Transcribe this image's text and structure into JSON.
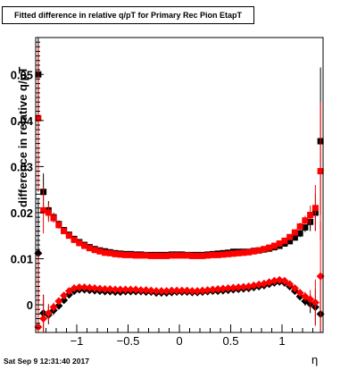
{
  "chart_data": {
    "type": "scatter",
    "title": "Fitted difference in relative q/pT for Primary Rec Pion EtapT",
    "xlabel": "η",
    "ylabel": "difference in relative q/pT",
    "xlim": [
      -1.4,
      1.4
    ],
    "ylim": [
      -0.006,
      0.058
    ],
    "x_ticks": [
      -1,
      -0.5,
      0,
      0.5,
      1
    ],
    "x_tick_labels": [
      "−1",
      "−0.5",
      "0",
      "0.5",
      "1"
    ],
    "y_ticks": [
      0,
      0.01,
      0.02,
      0.03,
      0.04,
      0.05
    ],
    "y_tick_labels": [
      "0",
      "0.01",
      "0.02",
      "0.03",
      "0.04",
      "0.05"
    ],
    "x": [
      -1.375,
      -1.325,
      -1.275,
      -1.225,
      -1.175,
      -1.125,
      -1.075,
      -1.025,
      -0.975,
      -0.925,
      -0.875,
      -0.825,
      -0.775,
      -0.725,
      -0.675,
      -0.625,
      -0.575,
      -0.525,
      -0.475,
      -0.425,
      -0.375,
      -0.325,
      -0.275,
      -0.225,
      -0.175,
      -0.125,
      -0.075,
      -0.025,
      0.025,
      0.075,
      0.125,
      0.175,
      0.225,
      0.275,
      0.325,
      0.375,
      0.425,
      0.475,
      0.525,
      0.575,
      0.625,
      0.675,
      0.725,
      0.775,
      0.825,
      0.875,
      0.925,
      0.975,
      1.025,
      1.075,
      1.125,
      1.175,
      1.225,
      1.275,
      1.325,
      1.375
    ],
    "series": [
      {
        "marker": "square",
        "color": "#000000",
        "values": [
          0.05,
          0.0245,
          0.0205,
          0.019,
          0.0175,
          0.0162,
          0.0152,
          0.0143,
          0.0136,
          0.013,
          0.0125,
          0.0121,
          0.0118,
          0.0116,
          0.0114,
          0.0112,
          0.0111,
          0.011,
          0.011,
          0.0109,
          0.0109,
          0.0108,
          0.0108,
          0.0108,
          0.0108,
          0.0108,
          0.0109,
          0.0109,
          0.0109,
          0.0108,
          0.0108,
          0.0108,
          0.0108,
          0.0109,
          0.011,
          0.0111,
          0.0112,
          0.0113,
          0.0115,
          0.0115,
          0.0115,
          0.0115,
          0.0117,
          0.0118,
          0.012,
          0.0122,
          0.0125,
          0.0128,
          0.0133,
          0.0138,
          0.0146,
          0.0155,
          0.0168,
          0.018,
          0.02,
          0.0355
        ],
        "errors": [
          0.012,
          0.004,
          0.002,
          0.001,
          0.0008,
          0.0006,
          0.0005,
          0.0004,
          0.0003,
          0.0003,
          0.0003,
          0.0002,
          0.0002,
          0.0002,
          0.0002,
          0.0002,
          0.0002,
          0.0002,
          0.0002,
          0.0002,
          0.0002,
          0.0002,
          0.0002,
          0.0002,
          0.0002,
          0.0002,
          0.0002,
          0.0002,
          0.0002,
          0.0002,
          0.0002,
          0.0002,
          0.0002,
          0.0002,
          0.0002,
          0.0002,
          0.0002,
          0.0002,
          0.0002,
          0.0002,
          0.0002,
          0.0002,
          0.0002,
          0.0002,
          0.0002,
          0.0003,
          0.0003,
          0.0003,
          0.0004,
          0.0005,
          0.0006,
          0.0008,
          0.001,
          0.002,
          0.004,
          0.016
        ]
      },
      {
        "marker": "square",
        "color": "#ff0000",
        "values": [
          0.0405,
          0.0205,
          0.02,
          0.0188,
          0.0173,
          0.016,
          0.015,
          0.0141,
          0.0134,
          0.0128,
          0.0123,
          0.0119,
          0.0116,
          0.0113,
          0.0112,
          0.011,
          0.0109,
          0.0108,
          0.0108,
          0.0107,
          0.0107,
          0.0107,
          0.0106,
          0.0106,
          0.0106,
          0.0106,
          0.0107,
          0.0107,
          0.0107,
          0.0107,
          0.0106,
          0.0106,
          0.0106,
          0.0107,
          0.0108,
          0.0108,
          0.0109,
          0.011,
          0.0111,
          0.0112,
          0.0113,
          0.0114,
          0.0116,
          0.0118,
          0.0121,
          0.0124,
          0.0128,
          0.0133,
          0.0139,
          0.0147,
          0.0157,
          0.017,
          0.0183,
          0.0195,
          0.021,
          0.029
        ],
        "errors": [
          0.016,
          0.005,
          0.002,
          0.001,
          0.0008,
          0.0006,
          0.0005,
          0.0004,
          0.0003,
          0.0003,
          0.0003,
          0.0002,
          0.0002,
          0.0002,
          0.0002,
          0.0002,
          0.0002,
          0.0002,
          0.0002,
          0.0002,
          0.0002,
          0.0002,
          0.0002,
          0.0002,
          0.0002,
          0.0002,
          0.0002,
          0.0002,
          0.0002,
          0.0002,
          0.0002,
          0.0002,
          0.0002,
          0.0002,
          0.0002,
          0.0002,
          0.0002,
          0.0002,
          0.0002,
          0.0002,
          0.0002,
          0.0002,
          0.0002,
          0.0002,
          0.0002,
          0.0003,
          0.0003,
          0.0003,
          0.0004,
          0.0005,
          0.0006,
          0.0008,
          0.001,
          0.002,
          0.005,
          0.015
        ]
      },
      {
        "marker": "diamond",
        "color": "#000000",
        "values": [
          0.0112,
          -0.0018,
          -0.0022,
          -0.0012,
          -0.0002,
          0.001,
          0.0022,
          0.003,
          0.0033,
          0.0033,
          0.0032,
          0.0031,
          0.003,
          0.0029,
          0.0029,
          0.0028,
          0.0028,
          0.0029,
          0.0029,
          0.0029,
          0.0029,
          0.0028,
          0.0028,
          0.0026,
          0.0026,
          0.0026,
          0.0027,
          0.0028,
          0.0028,
          0.0028,
          0.0027,
          0.0027,
          0.0028,
          0.0029,
          0.003,
          0.003,
          0.0031,
          0.0032,
          0.0033,
          0.0034,
          0.0035,
          0.0036,
          0.0038,
          0.004,
          0.0042,
          0.0045,
          0.0048,
          0.005,
          0.0048,
          0.004,
          0.003,
          0.0018,
          0.0008,
          0.0002,
          -0.0005,
          -0.002
        ],
        "errors": [
          0.012,
          0.004,
          0.002,
          0.001,
          0.0008,
          0.0006,
          0.0005,
          0.0004,
          0.0003,
          0.0003,
          0.0003,
          0.0002,
          0.0002,
          0.0002,
          0.0002,
          0.0002,
          0.0002,
          0.0002,
          0.0002,
          0.0002,
          0.0002,
          0.0002,
          0.0002,
          0.0002,
          0.0002,
          0.0002,
          0.0002,
          0.0002,
          0.0002,
          0.0002,
          0.0002,
          0.0002,
          0.0002,
          0.0002,
          0.0002,
          0.0002,
          0.0002,
          0.0002,
          0.0002,
          0.0002,
          0.0002,
          0.0002,
          0.0002,
          0.0002,
          0.0002,
          0.0003,
          0.0003,
          0.0003,
          0.0004,
          0.0005,
          0.0006,
          0.0008,
          0.001,
          0.002,
          0.004,
          0.008
        ]
      },
      {
        "marker": "diamond",
        "color": "#ff0000",
        "values": [
          -0.0048,
          -0.003,
          -0.0018,
          -0.0005,
          0.0008,
          0.002,
          0.003,
          0.0036,
          0.0038,
          0.0038,
          0.0037,
          0.0036,
          0.0035,
          0.0034,
          0.0034,
          0.0033,
          0.0033,
          0.0033,
          0.0033,
          0.0033,
          0.0032,
          0.0032,
          0.0031,
          0.003,
          0.003,
          0.003,
          0.0031,
          0.0031,
          0.0031,
          0.0031,
          0.003,
          0.003,
          0.0031,
          0.0032,
          0.0033,
          0.0034,
          0.0035,
          0.0036,
          0.0037,
          0.0038,
          0.0039,
          0.004,
          0.0042,
          0.0044,
          0.0046,
          0.0049,
          0.0052,
          0.0054,
          0.0052,
          0.0045,
          0.0036,
          0.0026,
          0.0018,
          0.0012,
          0.0005,
          0.0062
        ],
        "errors": [
          0.016,
          0.005,
          0.002,
          0.001,
          0.0008,
          0.0006,
          0.0005,
          0.0004,
          0.0003,
          0.0003,
          0.0003,
          0.0002,
          0.0002,
          0.0002,
          0.0002,
          0.0002,
          0.0002,
          0.0002,
          0.0002,
          0.0002,
          0.0002,
          0.0002,
          0.0002,
          0.0002,
          0.0002,
          0.0002,
          0.0002,
          0.0002,
          0.0002,
          0.0002,
          0.0002,
          0.0002,
          0.0002,
          0.0002,
          0.0002,
          0.0002,
          0.0002,
          0.0002,
          0.0002,
          0.0002,
          0.0002,
          0.0002,
          0.0002,
          0.0002,
          0.0002,
          0.0003,
          0.0003,
          0.0003,
          0.0004,
          0.0005,
          0.0006,
          0.0008,
          0.001,
          0.002,
          0.005,
          0.012
        ]
      }
    ],
    "grid": false,
    "legend": "none",
    "footer": "Sat Sep  9 12:31:40 2017"
  }
}
